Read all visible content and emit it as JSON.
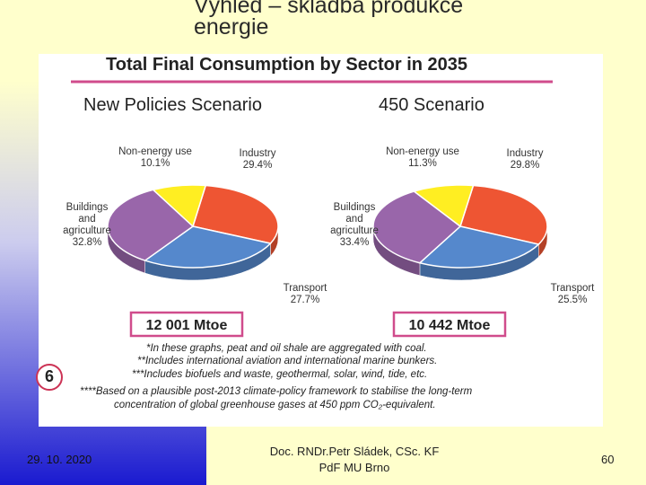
{
  "slide": {
    "title_line1": "Výhled – skladba produkce",
    "title_line2": "energie",
    "footer_date": "29. 10. 2020",
    "footer_author_line1": "Doc. RNDr.Petr Sládek, CSc. KF",
    "footer_author_line2": "PdF MU Brno",
    "footer_page": "60",
    "side_marker": "6"
  },
  "chart_data": {
    "title": "Total Final Consumption by Sector in 2035",
    "type": "pie",
    "charts": [
      {
        "scenario": "New Policies Scenario",
        "total": "12 001 Mtoe",
        "slices": [
          {
            "label": "Industry",
            "value": 29.4,
            "value_label": "29.4%",
            "color": "#ee5533"
          },
          {
            "label": "Transport",
            "value": 27.7,
            "value_label": "27.7%",
            "color": "#5588cc"
          },
          {
            "label_lines": [
              "Buildings",
              "and",
              "agriculture"
            ],
            "value": 32.8,
            "value_label": "32.8%",
            "color": "#9966aa"
          },
          {
            "label": "Non-energy use",
            "value": 10.1,
            "value_label": "10.1%",
            "color": "#ffee22"
          }
        ]
      },
      {
        "scenario": "450 Scenario",
        "total": "10 442 Mtoe",
        "slices": [
          {
            "label": "Industry",
            "value": 29.8,
            "value_label": "29.8%",
            "color": "#ee5533"
          },
          {
            "label": "Transport",
            "value": 25.5,
            "value_label": "25.5%",
            "color": "#5588cc"
          },
          {
            "label_lines": [
              "Buildings",
              "and",
              "agriculture"
            ],
            "value": 33.4,
            "value_label": "33.4%",
            "color": "#9966aa"
          },
          {
            "label": "Non-energy use",
            "value": 11.3,
            "value_label": "11.3%",
            "color": "#ffee22"
          }
        ]
      }
    ],
    "notes": [
      "*In these graphs, peat and oil shale are aggregated with coal.",
      "**Includes international aviation and international marine bunkers.",
      "***Includes biofuels and waste, geothermal, solar, wind, tide, etc.",
      "****Based on a plausible post-2013 climate-policy framework to stabilise the long-term",
      "concentration of global greenhouse gases at 450 ppm CO₂-equivalent."
    ]
  }
}
